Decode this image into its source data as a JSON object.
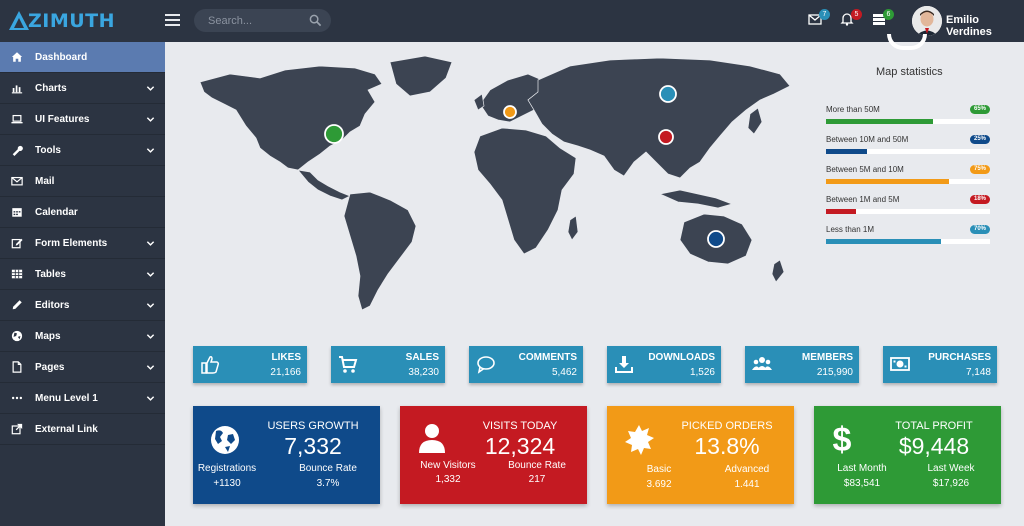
{
  "brand": {
    "logo_text": "ZIMUTH"
  },
  "header": {
    "search_placeholder": "Search...",
    "badges": {
      "mail": "7",
      "notifications": "5",
      "tasks": "6"
    },
    "user_name": "Emilio Verdines"
  },
  "sidebar": {
    "items": [
      {
        "label": "Dashboard",
        "icon": "home-icon",
        "active": true,
        "has_children": false
      },
      {
        "label": "Charts",
        "icon": "bar-chart-icon",
        "has_children": true
      },
      {
        "label": "UI Features",
        "icon": "laptop-icon",
        "has_children": true
      },
      {
        "label": "Tools",
        "icon": "wrench-icon",
        "has_children": true
      },
      {
        "label": "Mail",
        "icon": "envelope-icon",
        "has_children": false
      },
      {
        "label": "Calendar",
        "icon": "calendar-icon",
        "has_children": false
      },
      {
        "label": "Form Elements",
        "icon": "edit-icon",
        "has_children": true
      },
      {
        "label": "Tables",
        "icon": "table-icon",
        "has_children": true
      },
      {
        "label": "Editors",
        "icon": "pencil-icon",
        "has_children": true
      },
      {
        "label": "Maps",
        "icon": "globe-icon",
        "has_children": true
      },
      {
        "label": "Pages",
        "icon": "file-icon",
        "has_children": true
      },
      {
        "label": "Menu Level 1",
        "icon": "ellipsis-icon",
        "has_children": true
      },
      {
        "label": "External Link",
        "icon": "external-link-icon",
        "has_children": false
      }
    ]
  },
  "map_stats": {
    "title": "Map statistics",
    "rows": [
      {
        "label": "More than 50M",
        "badge": "65%",
        "value": 0.65,
        "color": "#2e9a36"
      },
      {
        "label": "Between 10M and 50M",
        "badge": "25%",
        "value": 0.25,
        "color": "#0f4a8a"
      },
      {
        "label": "Between 5M and 10M",
        "badge": "75%",
        "value": 0.75,
        "color": "#f29a17"
      },
      {
        "label": "Between 1M and 5M",
        "badge": "18%",
        "value": 0.18,
        "color": "#c41a22"
      },
      {
        "label": "Less than 1M",
        "badge": "70%",
        "value": 0.7,
        "color": "#2a8fb7"
      }
    ]
  },
  "small_cards": [
    {
      "title": "LIKES",
      "value": "21,166",
      "icon": "thumbs-up-icon"
    },
    {
      "title": "SALES",
      "value": "38,230",
      "icon": "cart-icon"
    },
    {
      "title": "COMMENTS",
      "value": "5,462",
      "icon": "comment-icon"
    },
    {
      "title": "DOWNLOADS",
      "value": "1,526",
      "icon": "download-icon"
    },
    {
      "title": "MEMBERS",
      "value": "215,990",
      "icon": "users-icon"
    },
    {
      "title": "PURCHASES",
      "value": "7,148",
      "icon": "money-icon"
    }
  ],
  "big_cards": [
    {
      "title": "USERS GROWTH",
      "value": "7,332",
      "left_label": "Registrations",
      "left_value": "+1130",
      "right_label": "Bounce Rate",
      "right_value": "3.7%",
      "color": "#0f4a8a",
      "icon": "globe-icon"
    },
    {
      "title": "VISITS TODAY",
      "value": "12,324",
      "left_label": "New Visitors",
      "left_value": "1,332",
      "right_label": "Bounce Rate",
      "right_value": "217",
      "color": "#c41a22",
      "icon": "user-icon"
    },
    {
      "title": "PICKED ORDERS",
      "value": "13.8%",
      "left_label": "Basic",
      "left_value": "3.692",
      "right_label": "Advanced",
      "right_value": "1.441",
      "color": "#f29a17",
      "icon": "badge-icon"
    },
    {
      "title": "TOTAL PROFIT",
      "value": "$9,448",
      "left_label": "Last Month",
      "left_value": "$83,541",
      "right_label": "Last Week",
      "right_value": "$17,926",
      "color": "#2e9a36",
      "icon": "dollar-icon"
    }
  ],
  "map_markers": [
    {
      "name": "north-america",
      "color": "#2e9a36"
    },
    {
      "name": "europe",
      "color": "#f29a17"
    },
    {
      "name": "russia",
      "color": "#2a8fb7"
    },
    {
      "name": "china",
      "color": "#c41a22"
    },
    {
      "name": "australia",
      "color": "#0f4a8a"
    }
  ]
}
